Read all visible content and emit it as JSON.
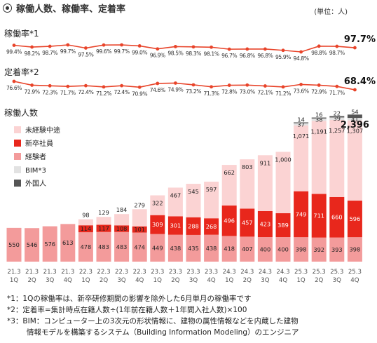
{
  "header": {
    "title": "稼働人数、稼働率、定着率",
    "unit": "(単位：人)"
  },
  "colors": {
    "line": "#e8442a",
    "inexperienced": "#fbd3d3",
    "new_grad": "#e8271c",
    "experienced": "#f39b9b",
    "bim": "#e2e2e2",
    "foreign": "#555555"
  },
  "chart_data": [
    {
      "type": "line",
      "title": "稼働率*1",
      "categories": [
        "21.3 1Q",
        "21.3 2Q",
        "21.3 3Q",
        "21.3 4Q",
        "22.3 1Q",
        "22.3 2Q",
        "22.3 3Q",
        "22.3 4Q",
        "23.3 1Q",
        "23.3 2Q",
        "23.3 3Q",
        "23.3 4Q",
        "24.3 1Q",
        "24.3 2Q",
        "24.3 3Q",
        "24.3 4Q",
        "25.3 1Q",
        "25.3 2Q",
        "25.3 3Q",
        "25.3 4Q"
      ],
      "values": [
        99.4,
        98.2,
        98.7,
        99.7,
        97.5,
        99.6,
        99.7,
        99.0,
        96.9,
        98.5,
        98.3,
        98.1,
        96.7,
        96.8,
        96.8,
        95.9,
        94.8,
        98.8,
        98.7,
        97.7
      ],
      "labels": [
        "99.4%",
        "98.2%",
        "98.7%",
        "99.7%",
        "97.5%",
        "99.6%",
        "99.7%",
        "99.0%",
        "96.9%",
        "98.5%",
        "98.3%",
        "98.1%",
        "96.7%",
        "96.8%",
        "96.8%",
        "95.9%",
        "94.8%",
        "98.8%",
        "98.7%",
        "97.7%"
      ]
    },
    {
      "type": "line",
      "title": "定着率*2",
      "categories": [
        "21.3 1Q",
        "21.3 2Q",
        "21.3 3Q",
        "21.3 4Q",
        "22.3 1Q",
        "22.3 2Q",
        "22.3 3Q",
        "22.3 4Q",
        "23.3 1Q",
        "23.3 2Q",
        "23.3 3Q",
        "23.3 4Q",
        "24.3 1Q",
        "24.3 2Q",
        "24.3 3Q",
        "24.3 4Q",
        "25.3 1Q",
        "25.3 2Q",
        "25.3 3Q",
        "25.3 4Q"
      ],
      "values": [
        76.6,
        72.9,
        72.3,
        71.7,
        72.4,
        71.2,
        72.4,
        70.9,
        74.6,
        74.9,
        73.2,
        71.3,
        72.8,
        73.0,
        72.1,
        71.2,
        73.6,
        72.9,
        71.7,
        68.4
      ],
      "labels": [
        "76.6%",
        "72.9%",
        "72.3%",
        "71.7%",
        "72.4%",
        "71.2%",
        "72.4%",
        "70.9%",
        "74.6%",
        "74.9%",
        "73.2%",
        "71.3%",
        "72.8%",
        "73.0%",
        "72.1%",
        "71.2%",
        "73.6%",
        "72.9%",
        "71.7%",
        "68.4%"
      ]
    },
    {
      "type": "bar",
      "stacked": true,
      "title": "稼働人数",
      "categories": [
        "21.3 1Q",
        "21.3 2Q",
        "21.3 3Q",
        "21.3 4Q",
        "22.3 1Q",
        "22.3 2Q",
        "22.3 3Q",
        "22.3 4Q",
        "23.3 1Q",
        "23.3 2Q",
        "23.3 3Q",
        "23.3 4Q",
        "24.3 1Q",
        "24.3 2Q",
        "24.3 3Q",
        "24.3 4Q",
        "25.3 1Q",
        "25.3 2Q",
        "25.3 3Q",
        "25.3 4Q"
      ],
      "x_year": [
        "21.3",
        "21.3",
        "21.3",
        "21.3",
        "22.3",
        "22.3",
        "22.3",
        "22.3",
        "23.3",
        "23.3",
        "23.3",
        "23.3",
        "24.3",
        "24.3",
        "24.3",
        "24.3",
        "25.3",
        "25.3",
        "25.3",
        "25.3"
      ],
      "x_quarter": [
        "1Q",
        "2Q",
        "3Q",
        "4Q",
        "1Q",
        "2Q",
        "3Q",
        "4Q",
        "1Q",
        "2Q",
        "3Q",
        "4Q",
        "1Q",
        "2Q",
        "3Q",
        "4Q",
        "1Q",
        "2Q",
        "3Q",
        "4Q"
      ],
      "ylim": [
        0,
        2500
      ],
      "legend": [
        "未経験中途",
        "新卒社員",
        "経験者",
        "BIM*3",
        "外国人"
      ],
      "series": [
        {
          "name": "経験者",
          "key": "experienced",
          "values": [
            550,
            546,
            576,
            613,
            478,
            483,
            483,
            474,
            449,
            438,
            435,
            438,
            418,
            407,
            400,
            400,
            398,
            392,
            393,
            398
          ]
        },
        {
          "name": "新卒社員",
          "key": "new_grad",
          "values": [
            0,
            0,
            0,
            0,
            114,
            117,
            108,
            101,
            309,
            301,
            288,
            268,
            496,
            457,
            423,
            389,
            749,
            711,
            660,
            596
          ]
        },
        {
          "name": "未経験中途",
          "key": "inexperienced",
          "values": [
            0,
            0,
            0,
            0,
            98,
            129,
            184,
            279,
            322,
            467,
            545,
            597,
            662,
            803,
            911,
            1000,
            1071,
            1191,
            1257,
            1307
          ]
        },
        {
          "name": "BIM*3",
          "key": "bim",
          "values": [
            0,
            0,
            0,
            0,
            0,
            0,
            0,
            0,
            0,
            0,
            0,
            0,
            0,
            0,
            0,
            0,
            37,
            38,
            39,
            41
          ]
        },
        {
          "name": "外国人",
          "key": "foreign",
          "values": [
            0,
            0,
            0,
            0,
            0,
            0,
            0,
            0,
            0,
            0,
            0,
            0,
            0,
            0,
            0,
            0,
            14,
            16,
            22,
            54
          ]
        }
      ],
      "total_label": "2,396"
    }
  ],
  "notes": [
    "*1：1Qの稼働率は、新卒研修期間の影響を除外した6月単月の稼働率です",
    "*2：定着率=集計時点在籍人数÷(1年前在籍人数＋1年間入社人数)×100",
    "*3：BIM：コンピューター上の3次元の形状情報に、建物の属性情報などを内蔵した建物",
    "情報モデルを構築するシステム（Building Information Modeling）のエンジニア"
  ]
}
